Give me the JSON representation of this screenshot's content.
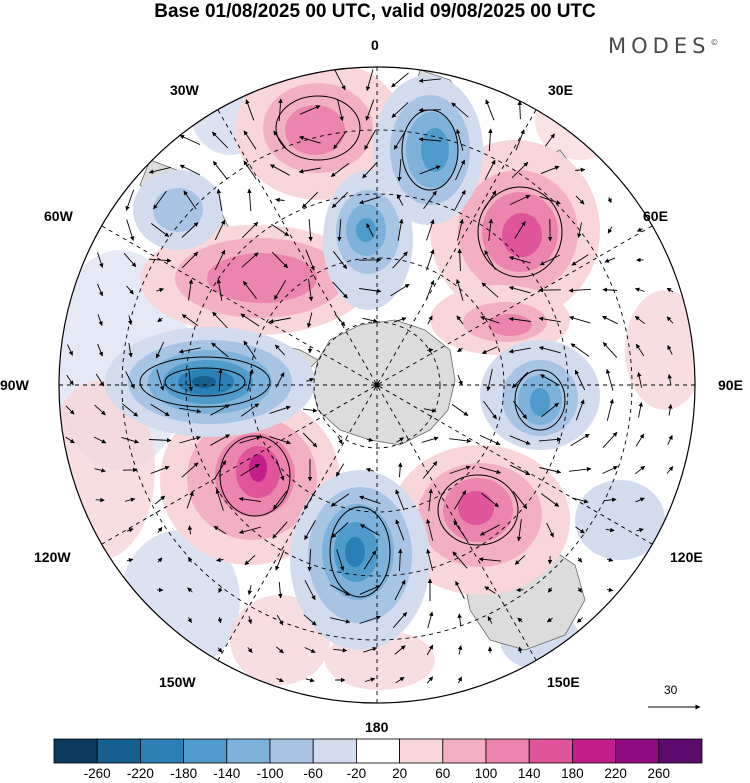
{
  "title": "Base 01/08/2025 00 UTC, valid 09/08/2025 00 UTC",
  "brand": "MODES",
  "brand_mark": "©",
  "longitude_labels": {
    "lon_0": "0",
    "lon_30e": "30E",
    "lon_60e": "60E",
    "lon_90e": "90E",
    "lon_120e": "120E",
    "lon_150e": "150E",
    "lon_180": "180",
    "lon_150w": "150W",
    "lon_120w": "120W",
    "lon_90w": "90W",
    "lon_60w": "60W",
    "lon_30w": "30W"
  },
  "wind_scale": {
    "label": "30"
  },
  "colorbar": {
    "labels": [
      "-260",
      "-220",
      "-180",
      "-140",
      "-100",
      "-60",
      "-20",
      "20",
      "60",
      "100",
      "140",
      "180",
      "220",
      "260"
    ],
    "colors": [
      "#0b3a5e",
      "#155f8f",
      "#2a7fb6",
      "#4f9bcb",
      "#7fb2da",
      "#a8c4e3",
      "#d3dbee",
      "#ffffff",
      "#f8d6da",
      "#f3b0c2",
      "#ec85ae",
      "#e0549c",
      "#c21f8a",
      "#8f0c80",
      "#5c0a6b"
    ]
  },
  "anomaly_colors": {
    "pos1": "#f8d6da",
    "pos2": "#f3b0c2",
    "pos3": "#ec85ae",
    "pos4": "#e0549c",
    "pos5": "#c21f8a",
    "pos6": "#8f0c80",
    "neg1": "#d3dbee",
    "neg2": "#a8c4e3",
    "neg3": "#7fb2da",
    "neg4": "#4f9bcb",
    "neg5": "#2a7fb6",
    "neg6": "#155f8f"
  },
  "land_color": "#dcdcdc"
}
